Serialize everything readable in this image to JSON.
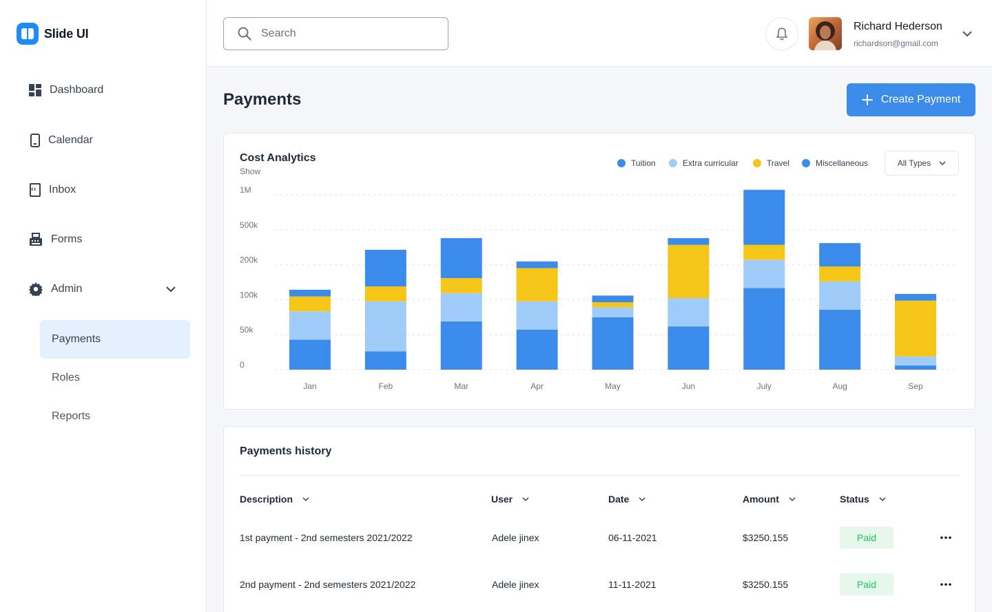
{
  "brand": {
    "name": "Slide UI",
    "accent": "#1d8cf8"
  },
  "sidebar": {
    "items": [
      {
        "label": "Dashboard",
        "icon": "dashboard-icon"
      },
      {
        "label": "Calendar",
        "icon": "tablet-icon"
      },
      {
        "label": "Inbox",
        "icon": "inbox-code-icon"
      },
      {
        "label": "Forms",
        "icon": "fax-icon"
      },
      {
        "label": "Admin",
        "icon": "gear-icon"
      }
    ],
    "admin_sub": [
      {
        "label": "Payments",
        "active": true
      },
      {
        "label": "Roles",
        "active": false
      },
      {
        "label": "Reports",
        "active": false
      }
    ]
  },
  "header": {
    "search_placeholder": "Search",
    "user_name": "Richard Hederson",
    "user_email": "richardson@gmail.com"
  },
  "main": {
    "title": "Payments",
    "create_label": "Create Payment"
  },
  "chart_data": {
    "type": "bar",
    "stacked": true,
    "title": "Cost Analytics",
    "subtitle": "Show",
    "filter_label": "All Types",
    "legend_position": "top-right",
    "grid": true,
    "y_ticks": [
      "0",
      "50k",
      "100k",
      "200k",
      "500k",
      "1M"
    ],
    "categories": [
      "Jan",
      "Feb",
      "Mar",
      "Apr",
      "May",
      "Jun",
      "July",
      "Aug",
      "Sep"
    ],
    "series": [
      {
        "name": "Tuition",
        "color": "#3b8beb",
        "values": [
          36,
          22,
          58,
          48,
          63,
          52,
          98,
          72,
          5
        ]
      },
      {
        "name": "Extra curricular",
        "color": "#a0ccfa",
        "values": [
          34,
          60,
          34,
          34,
          12,
          34,
          34,
          34,
          11
        ]
      },
      {
        "name": "Travel",
        "color": "#f5c518",
        "values": [
          18,
          18,
          18,
          40,
          6,
          64,
          18,
          18,
          67
        ]
      },
      {
        "name": "Miscellaneous",
        "color": "#3b8beb",
        "values": [
          8,
          44,
          48,
          8,
          8,
          8,
          66,
          28,
          8
        ]
      }
    ]
  },
  "history": {
    "title": "Payments history",
    "columns": [
      "Description",
      "User",
      "Date",
      "Amount",
      "Status"
    ],
    "rows": [
      {
        "description": "1st payment - 2nd semesters 2021/2022",
        "user": "Adele jinex",
        "date": "06-11-2021",
        "amount": "$3250.155",
        "status": "Paid"
      },
      {
        "description": "2nd payment - 2nd semesters 2021/2022",
        "user": "Adele jinex",
        "date": "11-11-2021",
        "amount": "$3250.155",
        "status": "Paid"
      }
    ]
  }
}
